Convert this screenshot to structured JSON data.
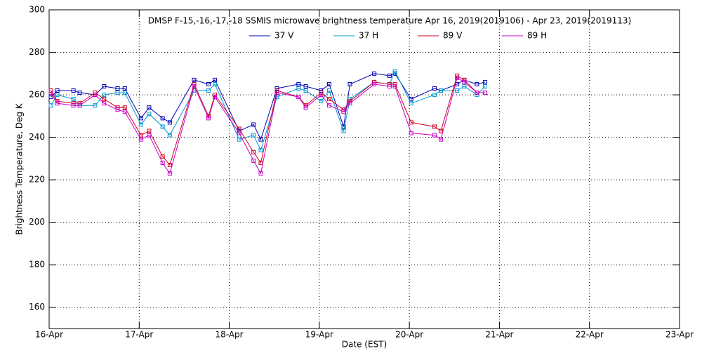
{
  "chart_data": {
    "type": "line",
    "title": "DMSP F-15,-16,-17,-18 SSMIS microwave brightness temperature Apr 16, 2019(2019106) - Apr 23, 2019(2019113)",
    "x_label": "Date (EST)",
    "y_label": "Brightness Temperature, Deg K",
    "x": [
      16.02,
      16.09,
      16.27,
      16.34,
      16.51,
      16.61,
      16.76,
      16.84,
      17.02,
      17.11,
      17.26,
      17.34,
      17.61,
      17.77,
      17.84,
      18.11,
      18.27,
      18.35,
      18.53,
      18.77,
      18.85,
      19.02,
      19.11,
      19.27,
      19.34,
      19.61,
      19.78,
      19.84,
      20.02,
      20.28,
      20.35,
      20.53,
      20.61,
      20.75,
      20.84
    ],
    "series": [
      {
        "name": "37 V",
        "color": "#0000b4",
        "values": [
          259,
          262,
          262,
          261,
          260,
          264,
          263,
          263,
          249,
          254,
          249,
          247,
          267,
          265,
          267,
          243,
          246,
          239,
          263,
          265,
          264,
          262,
          265,
          245,
          265,
          270,
          269,
          270,
          258,
          263,
          262,
          265,
          267,
          265,
          266
        ]
      },
      {
        "name": "37 H",
        "color": "#0096d2",
        "values": [
          255,
          260,
          258,
          255,
          255,
          260,
          261,
          261,
          246,
          251,
          245,
          241,
          262,
          262,
          265,
          239,
          241,
          234,
          259,
          263,
          262,
          257,
          262,
          243,
          258,
          266,
          265,
          271,
          256,
          260,
          262,
          262,
          264,
          260,
          264
        ]
      },
      {
        "name": "89 V",
        "color": "#d2001e",
        "values": [
          262,
          257,
          256,
          256,
          261,
          258,
          254,
          254,
          241,
          243,
          231,
          227,
          265,
          250,
          260,
          244,
          233,
          228,
          262,
          259,
          255,
          261,
          258,
          253,
          257,
          266,
          265,
          265,
          247,
          245,
          243,
          269,
          267,
          261,
          261
        ]
      },
      {
        "name": "89 H",
        "color": "#c800c8",
        "values": [
          261,
          256,
          255,
          255,
          260,
          256,
          253,
          252,
          239,
          241,
          228,
          223,
          264,
          249,
          259,
          242,
          229,
          223,
          261,
          259,
          254,
          260,
          255,
          252,
          256,
          265,
          264,
          264,
          242,
          241,
          239,
          268,
          266,
          261,
          261
        ]
      }
    ],
    "xlim": [
      16,
      23
    ],
    "xticks": [
      {
        "value": 16,
        "label": "16-Apr"
      },
      {
        "value": 17,
        "label": "17-Apr"
      },
      {
        "value": 18,
        "label": "18-Apr"
      },
      {
        "value": 19,
        "label": "19-Apr"
      },
      {
        "value": 20,
        "label": "20-Apr"
      },
      {
        "value": 21,
        "label": "21-Apr"
      },
      {
        "value": 22,
        "label": "22-Apr"
      },
      {
        "value": 23,
        "label": "23-Apr"
      }
    ],
    "ylim": [
      150,
      300
    ],
    "yticks": [
      160,
      180,
      200,
      220,
      240,
      260,
      280,
      300
    ],
    "grid": true
  }
}
